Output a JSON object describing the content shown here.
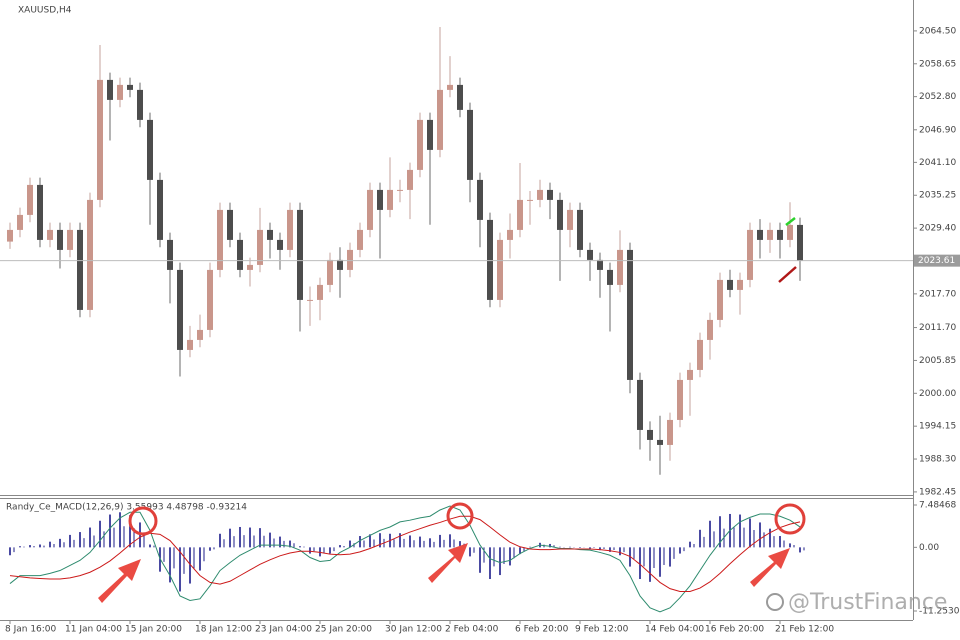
{
  "chart_data": [
    {
      "type": "candlestick",
      "title": "XAUUSD,H4",
      "categories": [
        "8 Jan 16:00",
        null,
        null,
        null,
        null,
        null,
        "11 Jan 04:00",
        null,
        null,
        null,
        null,
        null,
        "15 Jan 20:00",
        null,
        null,
        null,
        null,
        null,
        null,
        "18 Jan 12:00",
        null,
        null,
        null,
        null,
        null,
        "23 Jan 04:00",
        null,
        null,
        null,
        null,
        null,
        "25 Jan 20:00",
        null,
        null,
        null,
        null,
        null,
        null,
        "30 Jan 12:00",
        null,
        null,
        null,
        null,
        null,
        "2 Feb 04:00",
        null,
        null,
        null,
        null,
        null,
        null,
        "6 Feb 20:00",
        null,
        null,
        null,
        null,
        null,
        "9 Feb 12:00",
        null,
        null,
        null,
        null,
        null,
        null,
        "14 Feb 04:00",
        null,
        null,
        null,
        null,
        null,
        "16 Feb 20:00",
        null,
        null,
        null,
        null,
        null,
        null,
        "21 Feb 12:00",
        null,
        null
      ],
      "open": [
        2027.0,
        2029.08,
        2031.75,
        2037.09,
        2027.3,
        2029.08,
        2025.52,
        2029.08,
        2014.84,
        2034.42,
        2055.78,
        2052.22,
        2054.89,
        2054.0,
        2048.66,
        2037.98,
        2027.3,
        2021.96,
        2007.72,
        2009.5,
        2011.28,
        2021.96,
        2032.64,
        2027.3,
        2021.96,
        2022.85,
        2029.08,
        2027.3,
        2025.52,
        2032.64,
        2016.62,
        2016.62,
        2019.29,
        2023.74,
        2021.96,
        2025.52,
        2029.08,
        2036.2,
        2032.64,
        2036.2,
        2036.2,
        2039.76,
        2048.66,
        2043.32,
        2054.0,
        2054.89,
        2050.44,
        2037.98,
        2030.86,
        2016.62,
        2027.3,
        2029.08,
        2034.42,
        2034.42,
        2036.2,
        2034.42,
        2029.08,
        2032.64,
        2025.52,
        2023.74,
        2021.96,
        2019.29,
        2025.52,
        2002.38,
        1993.48,
        1991.7,
        1990.81,
        1995.26,
        2002.38,
        2004.16,
        2009.5,
        2013.06,
        2020.18,
        2018.4,
        2020.18,
        2029.08,
        2027.3,
        2029.08,
        2027.3,
        2029.97
      ],
      "high": [
        2030.38,
        2033.05,
        2038.39,
        2038.39,
        2030.38,
        2030.38,
        2030.38,
        2030.38,
        2035.72,
        2062.0,
        2057.08,
        2056.19,
        2056.19,
        2055.3,
        2049.96,
        2039.28,
        2028.6,
        2023.26,
        2012.0,
        2014.0,
        2023.26,
        2033.94,
        2033.94,
        2028.6,
        2024.15,
        2033.0,
        2030.38,
        2028.6,
        2033.94,
        2033.94,
        2019.0,
        2020.59,
        2025.04,
        2026.0,
        2026.82,
        2030.38,
        2037.5,
        2037.5,
        2042.0,
        2038.0,
        2041.06,
        2049.96,
        2049.96,
        2065.2,
        2060.0,
        2056.19,
        2051.74,
        2039.28,
        2032.16,
        2028.6,
        2032.0,
        2041.0,
        2036.0,
        2038.0,
        2037.5,
        2035.72,
        2033.94,
        2033.94,
        2026.82,
        2025.04,
        2023.26,
        2029.0,
        2026.82,
        2003.68,
        1995.0,
        1996.0,
        1996.56,
        2003.68,
        2005.46,
        2010.8,
        2014.36,
        2021.48,
        2022.0,
        2021.48,
        2030.38,
        2031.0,
        2030.38,
        2030.38,
        2034.0,
        2031.27
      ],
      "low": [
        2025.7,
        2027.78,
        2030.45,
        2026.0,
        2026.0,
        2022.22,
        2024.22,
        2013.54,
        2013.54,
        2033.12,
        2045.0,
        2050.92,
        2052.7,
        2047.36,
        2030.0,
        2026.0,
        2016.0,
        2003.0,
        2006.42,
        2008.2,
        2009.98,
        2020.66,
        2026.0,
        2020.66,
        2019.0,
        2021.55,
        2024.0,
        2022.0,
        2024.22,
        2011.0,
        2012.0,
        2013.0,
        2017.99,
        2017.0,
        2020.66,
        2024.22,
        2027.78,
        2024.0,
        2031.34,
        2034.0,
        2031.0,
        2038.46,
        2030.0,
        2042.02,
        2052.7,
        2049.14,
        2034.0,
        2026.0,
        2015.32,
        2015.32,
        2024.0,
        2027.78,
        2030.0,
        2033.12,
        2031.0,
        2020.0,
        2026.0,
        2024.22,
        2020.0,
        2017.0,
        2011.0,
        2017.99,
        2000.0,
        1990.0,
        1988.0,
        1985.5,
        1988.0,
        1993.96,
        1996.0,
        2002.86,
        2006.0,
        2011.76,
        2017.1,
        2014.0,
        2018.88,
        2024.0,
        2025.0,
        2024.0,
        2026.0,
        2020.0
      ],
      "close": [
        2029.08,
        2031.75,
        2037.09,
        2027.3,
        2029.08,
        2025.52,
        2029.08,
        2014.84,
        2034.42,
        2055.78,
        2052.22,
        2054.89,
        2054.0,
        2048.66,
        2037.98,
        2027.3,
        2021.96,
        2007.72,
        2009.5,
        2011.28,
        2021.96,
        2032.64,
        2027.3,
        2021.96,
        2022.85,
        2029.08,
        2027.3,
        2025.52,
        2032.64,
        2016.62,
        2016.62,
        2019.29,
        2023.74,
        2021.96,
        2025.52,
        2029.08,
        2036.2,
        2032.64,
        2036.2,
        2036.2,
        2039.76,
        2048.66,
        2043.32,
        2054.0,
        2054.89,
        2050.44,
        2037.98,
        2030.86,
        2016.62,
        2027.3,
        2029.08,
        2034.42,
        2034.42,
        2036.2,
        2034.42,
        2029.08,
        2032.64,
        2025.52,
        2023.74,
        2021.96,
        2019.29,
        2025.52,
        2002.38,
        1993.48,
        1991.7,
        1990.81,
        1995.26,
        2002.38,
        2004.16,
        2009.5,
        2013.06,
        2020.18,
        2018.4,
        2020.18,
        2029.08,
        2027.3,
        2029.08,
        2027.3,
        2029.97,
        2023.61
      ],
      "up_color": "#c9968b",
      "down_color": "#4d4d4d",
      "ylim": [
        1981.9,
        2070.0
      ],
      "yticks": [
        {
          "value": 2064.5,
          "label": "2064.50"
        },
        2058.65,
        {
          "value": 2052.8,
          "label": "2052.80"
        },
        {
          "value": 2046.9,
          "label": "2046.90"
        },
        {
          "value": 2041.1,
          "label": "2041.10"
        },
        2035.25,
        {
          "value": 2029.4,
          "label": "2029.40"
        },
        {
          "value": 2017.7,
          "label": "2017.70"
        },
        {
          "value": 2011.7,
          "label": "2011.70"
        },
        2005.85,
        {
          "value": 2000,
          "label": "2000.00"
        },
        1994.15,
        {
          "value": 1988.3,
          "label": "1988.30"
        },
        1982.45
      ]
    },
    {
      "type": "macd",
      "title": "Randy_Ce_MACD(12,26,9) 3.55993 4.48798 -0.93214",
      "histogram": {
        "color": "#1c1c8a",
        "values": [
          -1.4,
          0.2,
          0.4,
          0.5,
          1.0,
          1.5,
          2.2,
          2.7,
          3.5,
          4.7,
          5.8,
          6.2,
          5.7,
          4.4,
          0.5,
          -4.3,
          -6.2,
          -7.8,
          -6.4,
          -4.1,
          -0.6,
          2.4,
          3.3,
          3.6,
          3.5,
          3.4,
          2.6,
          1.9,
          1.2,
          0.2,
          -1.1,
          -1.6,
          -1.1,
          0.4,
          1.2,
          2.0,
          2.3,
          2.5,
          2.4,
          2.5,
          2.1,
          1.9,
          1.6,
          2.2,
          2.3,
          1.1,
          -1.6,
          -4.5,
          -5.6,
          -4.9,
          -3.2,
          -1.2,
          0.1,
          0.8,
          0.6,
          0.1,
          0.1,
          -0.1,
          -0.2,
          -0.5,
          -0.8,
          -1.4,
          -3.4,
          -5.6,
          -6.1,
          -5.2,
          -3.4,
          -1.1,
          1.0,
          3.1,
          4.7,
          5.5,
          5.9,
          5.8,
          5.1,
          4.4,
          3.3,
          2.0,
          0.7,
          -0.9
        ]
      },
      "series": [
        {
          "color": "#2e8b6e",
          "values": [
            -6.4,
            -5.0,
            -5.0,
            -5.0,
            -4.6,
            -4.1,
            -3.2,
            -2.3,
            -0.9,
            1.2,
            3.4,
            5.2,
            6.2,
            6.2,
            3.0,
            -2.0,
            -5.0,
            -8.6,
            -9.4,
            -9.1,
            -6.8,
            -4.1,
            -2.7,
            -1.4,
            -0.5,
            0.4,
            0.4,
            0.4,
            0.2,
            -0.5,
            -1.8,
            -2.5,
            -2.3,
            -0.9,
            0.0,
            1.2,
            2.1,
            3.0,
            3.6,
            4.5,
            4.8,
            5.2,
            5.5,
            6.6,
            7.3,
            6.6,
            3.9,
            0.4,
            -2.0,
            -2.7,
            -2.3,
            -1.1,
            -0.2,
            0.4,
            0.2,
            -0.2,
            -0.2,
            -0.4,
            -0.5,
            -0.9,
            -1.4,
            -2.3,
            -5.0,
            -8.6,
            -10.7,
            -11.4,
            -10.7,
            -8.9,
            -6.8,
            -4.1,
            -1.4,
            0.9,
            3.0,
            4.5,
            5.3,
            5.9,
            5.9,
            5.5,
            4.8,
            3.6
          ]
        },
        {
          "color": "#cc1a1a",
          "values": [
            -5.0,
            -5.2,
            -5.4,
            -5.5,
            -5.6,
            -5.6,
            -5.4,
            -5.0,
            -4.4,
            -3.5,
            -2.4,
            -1.0,
            0.5,
            1.8,
            2.5,
            2.3,
            1.2,
            -0.8,
            -3.0,
            -5.0,
            -6.2,
            -6.5,
            -6.0,
            -5.0,
            -4.0,
            -3.0,
            -2.2,
            -1.5,
            -1.0,
            -0.7,
            -0.7,
            -0.9,
            -1.2,
            -1.3,
            -1.2,
            -0.8,
            -0.2,
            0.5,
            1.2,
            2.0,
            2.7,
            3.3,
            3.9,
            4.4,
            5.0,
            5.5,
            5.5,
            4.9,
            3.6,
            2.2,
            0.9,
            0.1,
            -0.3,
            -0.4,
            -0.4,
            -0.3,
            -0.3,
            -0.3,
            -0.3,
            -0.4,
            -0.6,
            -0.9,
            -1.6,
            -3.0,
            -4.6,
            -6.2,
            -7.3,
            -7.8,
            -7.8,
            -7.2,
            -6.1,
            -4.6,
            -2.9,
            -1.3,
            0.2,
            1.5,
            2.6,
            3.5,
            4.1,
            4.5
          ]
        }
      ],
      "ylim": [
        -11.25306,
        7.48468
      ],
      "yticks": [
        7.48468,
        {
          "value": 0,
          "label": "0.00"
        },
        -11.25306
      ]
    }
  ],
  "watermark": "@TrustFinance"
}
